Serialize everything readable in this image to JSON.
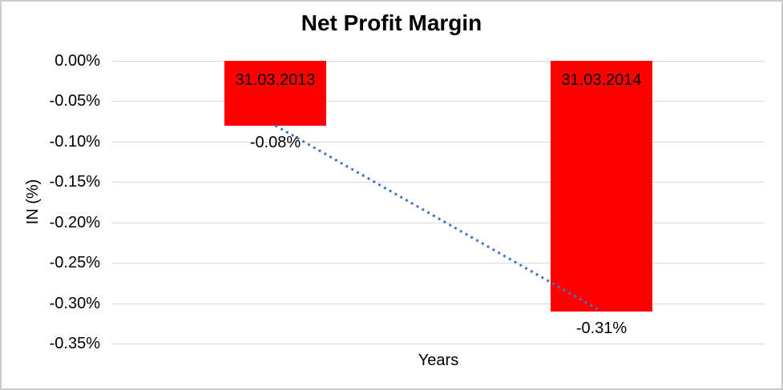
{
  "chart_data": {
    "type": "bar",
    "title": "Net Profit Margin",
    "xlabel": "Years",
    "ylabel": "IN (%)",
    "categories": [
      "31.03.2013",
      "31.03.2014"
    ],
    "values": [
      -0.08,
      -0.31
    ],
    "data_labels": [
      "-0.08%",
      "-0.31%"
    ],
    "ylim": [
      0,
      -0.35
    ],
    "ytick_step": -0.05,
    "yticks": [
      "0.00%",
      "-0.05%",
      "-0.10%",
      "-0.15%",
      "-0.20%",
      "-0.25%",
      "-0.30%",
      "-0.35%"
    ],
    "grid": true,
    "legend": "none",
    "category_labels_position": "inside-top",
    "data_labels_position": "outside-end",
    "bar_color": "#FF0000",
    "bar_label_color": "#000000",
    "gridline_color": "#D9D9D9",
    "text_color": "#000000",
    "trendline": {
      "type": "linear",
      "style": "dotted",
      "color": "#4472C4",
      "connects": [
        "-0.08%",
        "-0.31%"
      ]
    }
  }
}
